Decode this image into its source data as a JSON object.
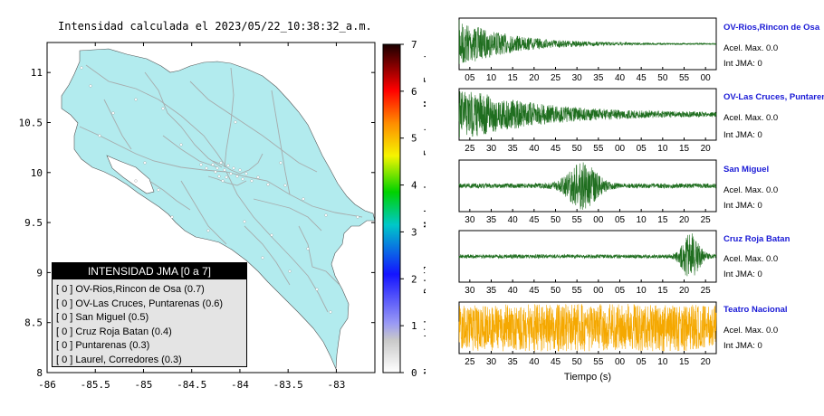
{
  "map": {
    "title": "Intensidad calculada el 2023/05/22_10:38:32_a.m.",
    "x_ticks": [
      -86,
      -85.5,
      -85,
      -84.5,
      -84,
      -83.5,
      -83
    ],
    "x_tick_labels": [
      "-86",
      "-85.5",
      "-85",
      "-84.5",
      "-84",
      "-83.5",
      "-83"
    ],
    "y_ticks": [
      8,
      8.5,
      9,
      9.5,
      10,
      10.5,
      11
    ],
    "y_tick_labels": [
      "8",
      "8.5",
      "9",
      "9.5",
      "10",
      "10.5",
      "11"
    ],
    "xlim": [
      -86,
      -82.6
    ],
    "ylim": [
      8,
      11.3
    ],
    "land_color": "#b2ebee",
    "road_color": "#a5a5a5"
  },
  "colorbar": {
    "ticks": [
      "0",
      "1",
      "2",
      "3",
      "4",
      "5",
      "6",
      "7"
    ],
    "range": [
      0,
      7
    ],
    "category_labels": [
      "No sentido",
      "Debil",
      "Moderado",
      "Fuerte",
      "Muy Fuerte"
    ],
    "colors": [
      "#ffffff",
      "#7a7af0",
      "#1a1aff",
      "#00d000",
      "#f0f000",
      "#ff8c00",
      "#ff0000",
      "#1a0000"
    ]
  },
  "legend": {
    "header": "INTENSIDAD JMA [0 a 7]",
    "items": [
      "[ 0 ]  OV-Rios,Rincon de Osa (0.7)",
      "[ 0 ]  OV-Las Cruces, Puntarenas (0.6)",
      "[ 0 ]  San Miguel (0.5)",
      "[ 0 ]  Cruz Roja Batan (0.4)",
      "[ 0 ]  Puntarenas (0.3)",
      "[ 0 ]  Laurel, Corredores (0.3)"
    ]
  },
  "chart_data": [
    {
      "type": "line",
      "name": "OV-Rios,Rincon de Osa",
      "color": "#1f6e1f",
      "x_tick_labels": [
        "05",
        "10",
        "15",
        "20",
        "25",
        "30",
        "35",
        "40",
        "45",
        "50",
        "55",
        "00"
      ],
      "envelope": {
        "peak_position": 0.0,
        "decay": 0.2,
        "baseline": 0.02
      }
    },
    {
      "type": "line",
      "name": "OV-Las Cruces, Puntarenas",
      "color": "#1f6e1f",
      "x_tick_labels": [
        "25",
        "30",
        "35",
        "40",
        "45",
        "50",
        "55",
        "00",
        "05",
        "10",
        "15",
        "20"
      ],
      "envelope": {
        "peak_position": 0.05,
        "decay": 0.3,
        "baseline": 0.06
      }
    },
    {
      "type": "line",
      "name": "San Miguel",
      "color": "#1f6e1f",
      "x_tick_labels": [
        "30",
        "35",
        "40",
        "45",
        "50",
        "55",
        "00",
        "05",
        "10",
        "15",
        "20",
        "25"
      ],
      "envelope": {
        "peak_position": 0.48,
        "width": 0.07,
        "baseline": 0.1
      }
    },
    {
      "type": "line",
      "name": "Cruz Roja Batan",
      "color": "#1f6e1f",
      "x_tick_labels": [
        "30",
        "35",
        "40",
        "45",
        "50",
        "55",
        "00",
        "05",
        "10",
        "15",
        "20",
        "25"
      ],
      "envelope": {
        "peak_position": 0.9,
        "width": 0.04,
        "baseline": 0.08
      }
    },
    {
      "type": "line",
      "name": "Teatro Nacional",
      "color": "#f5a800",
      "x_tick_labels": [
        "25",
        "30",
        "35",
        "40",
        "45",
        "50",
        "55",
        "00",
        "05",
        "10",
        "15",
        "20"
      ],
      "xlabel": "Tiempo (s)",
      "envelope": {
        "peak_position": 0.5,
        "width": 1.0,
        "baseline": 0.75
      }
    }
  ],
  "stations": [
    {
      "name": "OV-Rios,Rincon de Osa",
      "accel": "Acel. Max. 0.0",
      "jma": "Int JMA: 0"
    },
    {
      "name": "OV-Las Cruces, Puntarenas",
      "accel": "Acel. Max. 0.0",
      "jma": "Int JMA: 0"
    },
    {
      "name": "San Miguel",
      "accel": "Acel. Max. 0.0",
      "jma": "Int JMA: 0"
    },
    {
      "name": "Cruz Roja Batan",
      "accel": "Acel. Max. 0.0",
      "jma": "Int JMA: 0"
    },
    {
      "name": "Teatro Nacional",
      "accel": "Acel. Max. 0.0",
      "jma": "Int JMA: 0"
    }
  ]
}
